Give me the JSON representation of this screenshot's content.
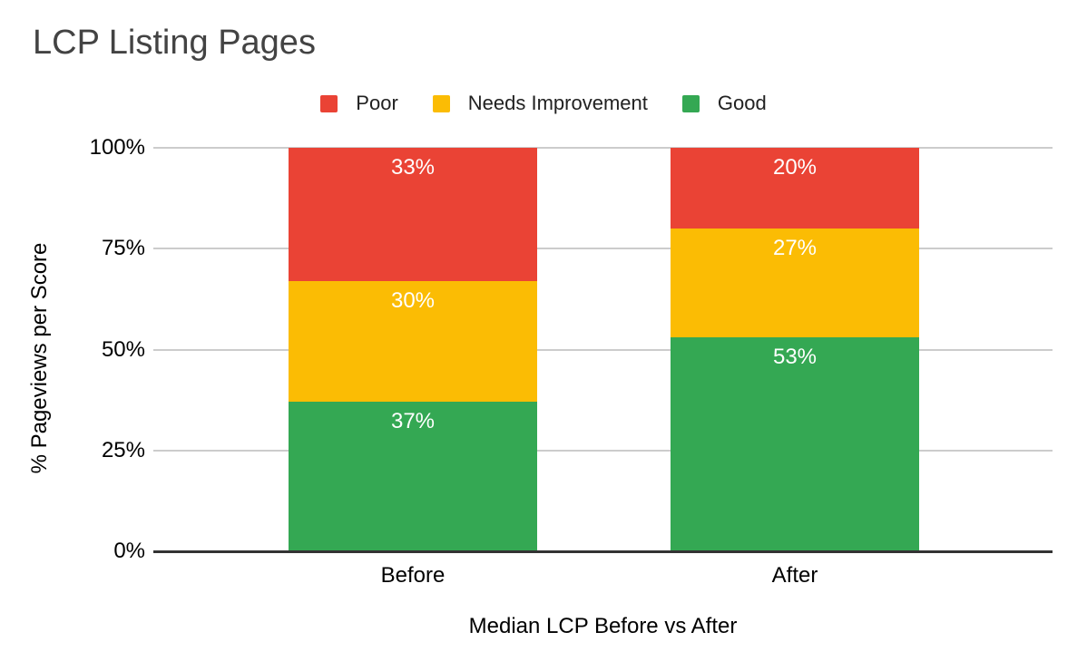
{
  "title": "LCP Listing Pages",
  "legend": {
    "items": [
      {
        "label": "Poor",
        "color": "#EA4335"
      },
      {
        "label": "Needs Improvement",
        "color": "#FBBC04"
      },
      {
        "label": "Good",
        "color": "#34A853"
      }
    ]
  },
  "axes": {
    "y_title": "% Pageviews per Score",
    "x_title": "Median LCP Before vs After",
    "y_ticks": [
      {
        "label": "100%",
        "value": 100
      },
      {
        "label": "75%",
        "value": 75
      },
      {
        "label": "50%",
        "value": 50
      },
      {
        "label": "25%",
        "value": 25
      },
      {
        "label": "0%",
        "value": 0
      }
    ]
  },
  "chart_data": {
    "type": "bar",
    "stacked": true,
    "orientation": "vertical",
    "title": "LCP Listing Pages",
    "xlabel": "Median LCP Before vs After",
    "ylabel": "% Pageviews per Score",
    "categories": [
      "Before",
      "After"
    ],
    "series": [
      {
        "name": "Good",
        "color": "#34A853",
        "values": [
          37,
          53
        ]
      },
      {
        "name": "Needs Improvement",
        "color": "#FBBC04",
        "values": [
          30,
          27
        ]
      },
      {
        "name": "Poor",
        "color": "#EA4335",
        "values": [
          33,
          20
        ]
      }
    ],
    "value_suffix": "%",
    "ylim": [
      0,
      100
    ],
    "grid": true,
    "legend_position": "top",
    "bar_label_color": "#FFFFFF"
  },
  "colors": {
    "title_text": "#434343",
    "axis_text": "#000000",
    "gridline": "#CCCCCC",
    "baseline": "#333333",
    "background": "#FFFFFF"
  }
}
